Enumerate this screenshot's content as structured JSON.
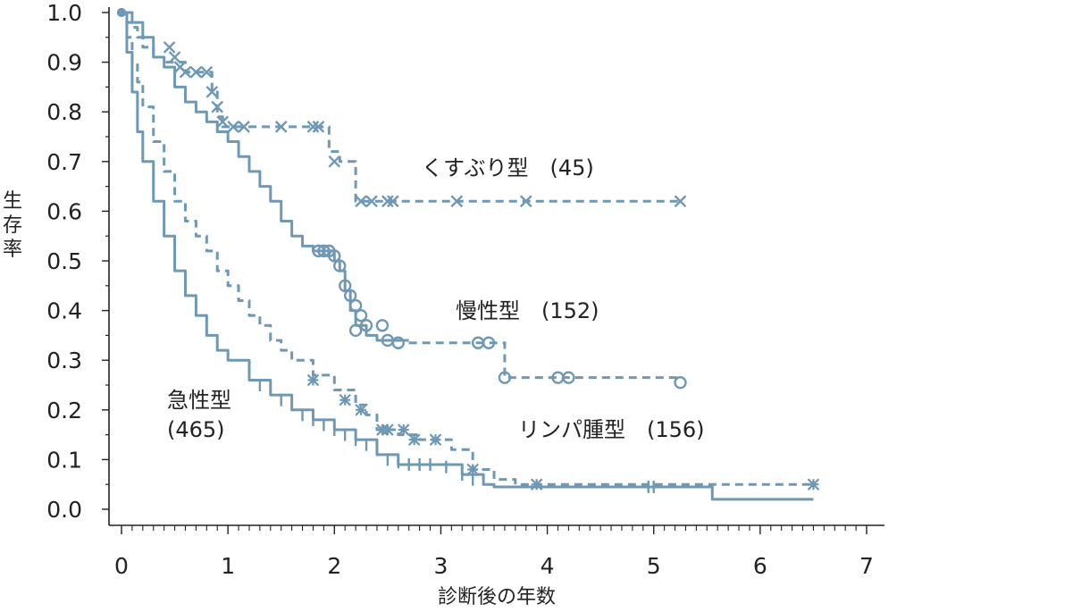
{
  "chart_data": {
    "type": "line",
    "subtype": "kaplan-meier survival curves",
    "xlabel": "診断後の年数",
    "ylabel": "生存率",
    "xlim": [
      0,
      7
    ],
    "ylim": [
      0.0,
      1.0
    ],
    "xticks": [
      "0",
      "1",
      "2",
      "3",
      "4",
      "5",
      "6",
      "7"
    ],
    "yticks": [
      "0.0",
      "0.1",
      "0.2",
      "0.3",
      "0.4",
      "0.5",
      "0.6",
      "0.7",
      "0.8",
      "0.9",
      "1.0"
    ],
    "grid": false,
    "series_color": "#6e98b4",
    "series": [
      {
        "name": "くすぶり型",
        "count_label": "(45)",
        "line_style": "dashed",
        "marker": "x",
        "steps": [
          [
            0,
            1.0
          ],
          [
            0.05,
            0.98
          ],
          [
            0.1,
            0.97
          ],
          [
            0.15,
            0.95
          ],
          [
            0.2,
            0.93
          ],
          [
            0.3,
            0.91
          ],
          [
            0.4,
            0.9
          ],
          [
            0.6,
            0.88
          ],
          [
            0.85,
            0.84
          ],
          [
            0.9,
            0.79
          ],
          [
            0.95,
            0.77
          ],
          [
            1.4,
            0.77
          ],
          [
            1.9,
            0.77
          ],
          [
            1.95,
            0.72
          ],
          [
            2.05,
            0.7
          ],
          [
            2.2,
            0.62
          ],
          [
            5.25,
            0.62
          ]
        ],
        "censors": [
          [
            0.45,
            0.93
          ],
          [
            0.5,
            0.91
          ],
          [
            0.55,
            0.89
          ],
          [
            0.6,
            0.88
          ],
          [
            0.7,
            0.88
          ],
          [
            0.8,
            0.88
          ],
          [
            0.85,
            0.84
          ],
          [
            0.9,
            0.81
          ],
          [
            0.95,
            0.78
          ],
          [
            1.05,
            0.77
          ],
          [
            1.15,
            0.77
          ],
          [
            1.5,
            0.77
          ],
          [
            1.8,
            0.77
          ],
          [
            1.85,
            0.77
          ],
          [
            2.0,
            0.7
          ],
          [
            2.25,
            0.62
          ],
          [
            2.35,
            0.62
          ],
          [
            2.5,
            0.62
          ],
          [
            2.55,
            0.62
          ],
          [
            3.15,
            0.62
          ],
          [
            3.8,
            0.62
          ],
          [
            5.25,
            0.62
          ]
        ],
        "label_anchor": [
          3.0,
          0.68
        ]
      },
      {
        "name": "慢性型",
        "count_label": "(152)",
        "line_style": "solid",
        "marker": "o",
        "steps": [
          [
            0,
            1.0
          ],
          [
            0.1,
            0.98
          ],
          [
            0.2,
            0.95
          ],
          [
            0.3,
            0.91
          ],
          [
            0.4,
            0.89
          ],
          [
            0.5,
            0.85
          ],
          [
            0.6,
            0.82
          ],
          [
            0.7,
            0.8
          ],
          [
            0.8,
            0.78
          ],
          [
            0.9,
            0.76
          ],
          [
            1.0,
            0.74
          ],
          [
            1.1,
            0.71
          ],
          [
            1.2,
            0.68
          ],
          [
            1.3,
            0.65
          ],
          [
            1.4,
            0.62
          ],
          [
            1.5,
            0.58
          ],
          [
            1.6,
            0.55
          ],
          [
            1.7,
            0.53
          ],
          [
            1.8,
            0.52
          ],
          [
            1.95,
            0.52
          ],
          [
            2.0,
            0.5
          ],
          [
            2.05,
            0.48
          ],
          [
            2.1,
            0.44
          ],
          [
            2.15,
            0.4
          ],
          [
            2.2,
            0.37
          ],
          [
            2.3,
            0.35
          ],
          [
            2.4,
            0.34
          ],
          [
            2.7,
            0.34
          ]
        ],
        "steps_tail_style": "dashed",
        "steps_tail": [
          [
            2.7,
            0.335
          ],
          [
            3.55,
            0.335
          ],
          [
            3.6,
            0.265
          ],
          [
            5.25,
            0.265
          ]
        ],
        "censors": [
          [
            1.85,
            0.52
          ],
          [
            1.9,
            0.52
          ],
          [
            1.95,
            0.52
          ],
          [
            2.0,
            0.51
          ],
          [
            2.05,
            0.49
          ],
          [
            2.1,
            0.45
          ],
          [
            2.15,
            0.43
          ],
          [
            2.2,
            0.41
          ],
          [
            2.25,
            0.39
          ],
          [
            2.3,
            0.37
          ],
          [
            2.2,
            0.36
          ],
          [
            2.45,
            0.37
          ],
          [
            2.5,
            0.34
          ],
          [
            2.6,
            0.335
          ],
          [
            3.35,
            0.335
          ],
          [
            3.45,
            0.335
          ],
          [
            3.6,
            0.265
          ],
          [
            4.1,
            0.265
          ],
          [
            4.2,
            0.265
          ],
          [
            5.25,
            0.255
          ]
        ],
        "label_anchor": [
          3.3,
          0.4
        ]
      },
      {
        "name": "リンパ腫型",
        "count_label": "(156)",
        "line_style": "dashed",
        "marker": "*",
        "steps": [
          [
            0,
            1.0
          ],
          [
            0.05,
            0.95
          ],
          [
            0.1,
            0.9
          ],
          [
            0.15,
            0.86
          ],
          [
            0.2,
            0.81
          ],
          [
            0.3,
            0.74
          ],
          [
            0.4,
            0.68
          ],
          [
            0.5,
            0.62
          ],
          [
            0.6,
            0.58
          ],
          [
            0.7,
            0.55
          ],
          [
            0.8,
            0.52
          ],
          [
            0.9,
            0.48
          ],
          [
            1.0,
            0.45
          ],
          [
            1.1,
            0.42
          ],
          [
            1.2,
            0.39
          ],
          [
            1.3,
            0.37
          ],
          [
            1.4,
            0.34
          ],
          [
            1.5,
            0.32
          ],
          [
            1.6,
            0.3
          ],
          [
            1.8,
            0.27
          ],
          [
            2.0,
            0.24
          ],
          [
            2.2,
            0.21
          ],
          [
            2.3,
            0.19
          ],
          [
            2.4,
            0.16
          ],
          [
            2.6,
            0.15
          ],
          [
            2.8,
            0.14
          ],
          [
            3.1,
            0.12
          ],
          [
            3.3,
            0.08
          ],
          [
            3.5,
            0.06
          ],
          [
            3.7,
            0.05
          ],
          [
            6.5,
            0.05
          ]
        ],
        "censors": [
          [
            1.8,
            0.26
          ],
          [
            2.1,
            0.22
          ],
          [
            2.25,
            0.2
          ],
          [
            2.45,
            0.16
          ],
          [
            2.5,
            0.16
          ],
          [
            2.65,
            0.16
          ],
          [
            2.75,
            0.14
          ],
          [
            2.95,
            0.14
          ],
          [
            3.3,
            0.08
          ],
          [
            3.9,
            0.05
          ],
          [
            6.5,
            0.05
          ]
        ],
        "label_anchor": [
          3.8,
          0.18
        ]
      },
      {
        "name": "急性型",
        "count_label": "(465)",
        "line_style": "solid",
        "marker": "+",
        "steps": [
          [
            0,
            1.0
          ],
          [
            0.05,
            0.92
          ],
          [
            0.1,
            0.84
          ],
          [
            0.15,
            0.76
          ],
          [
            0.2,
            0.7
          ],
          [
            0.3,
            0.62
          ],
          [
            0.4,
            0.55
          ],
          [
            0.5,
            0.48
          ],
          [
            0.6,
            0.43
          ],
          [
            0.7,
            0.39
          ],
          [
            0.8,
            0.35
          ],
          [
            0.9,
            0.32
          ],
          [
            1.0,
            0.3
          ],
          [
            1.2,
            0.26
          ],
          [
            1.4,
            0.23
          ],
          [
            1.6,
            0.2
          ],
          [
            1.8,
            0.18
          ],
          [
            2.0,
            0.16
          ],
          [
            2.2,
            0.14
          ],
          [
            2.4,
            0.11
          ],
          [
            2.6,
            0.09
          ],
          [
            3.0,
            0.09
          ],
          [
            3.2,
            0.07
          ],
          [
            3.4,
            0.05
          ],
          [
            3.5,
            0.045
          ],
          [
            5.55,
            0.045
          ],
          [
            5.55,
            0.02
          ],
          [
            6.5,
            0.02
          ]
        ],
        "censors": [
          [
            1.3,
            0.25
          ],
          [
            1.5,
            0.22
          ],
          [
            1.6,
            0.21
          ],
          [
            1.7,
            0.19
          ],
          [
            1.8,
            0.18
          ],
          [
            1.9,
            0.17
          ],
          [
            2.0,
            0.16
          ],
          [
            2.1,
            0.15
          ],
          [
            2.2,
            0.14
          ],
          [
            2.3,
            0.13
          ],
          [
            2.4,
            0.12
          ],
          [
            2.5,
            0.1
          ],
          [
            2.6,
            0.095
          ],
          [
            2.7,
            0.09
          ],
          [
            2.8,
            0.09
          ],
          [
            2.9,
            0.09
          ],
          [
            3.05,
            0.085
          ],
          [
            3.2,
            0.07
          ],
          [
            3.3,
            0.06
          ],
          [
            4.95,
            0.045
          ],
          [
            5.0,
            0.045
          ]
        ],
        "label_anchor": [
          0.45,
          0.22
        ]
      }
    ]
  }
}
